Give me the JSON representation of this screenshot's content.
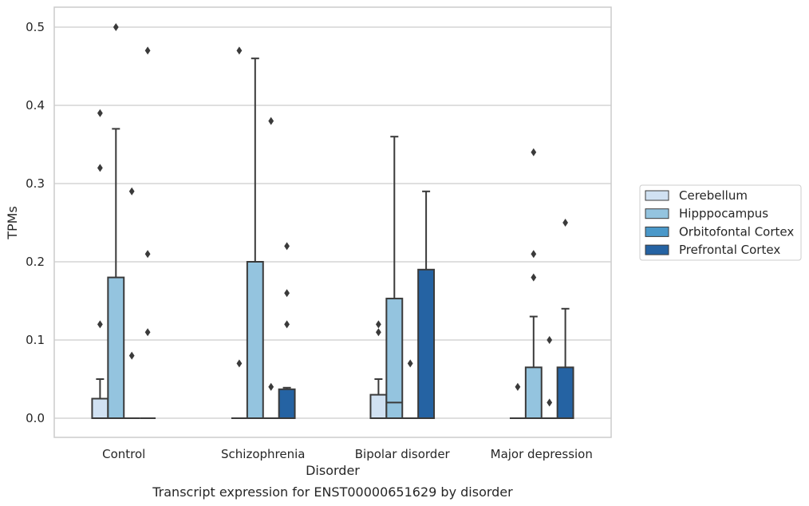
{
  "chart_data": {
    "type": "box",
    "title": "Transcript expression for ENST00000651629 by disorder",
    "xlabel": "Disorder",
    "ylabel": "TPMs",
    "ylim": [
      -0.025,
      0.525
    ],
    "yticks": [
      "0.0",
      "0.1",
      "0.2",
      "0.3",
      "0.4",
      "0.5"
    ],
    "ytick_values": [
      0.0,
      0.1,
      0.2,
      0.3,
      0.4,
      0.5
    ],
    "grid": true,
    "legend_position": "right",
    "categories": [
      "Control",
      "Schizophrenia",
      "Bipolar disorder",
      "Major depression"
    ],
    "series": [
      {
        "name": "Cerebellum",
        "color": "#d0e1f2",
        "boxes": [
          {
            "q1": 0.0,
            "median": 0.0,
            "q3": 0.025,
            "whisker_low": 0.0,
            "whisker_high": 0.05,
            "outliers": [
              0.12,
              0.32,
              0.39
            ]
          },
          {
            "q1": 0.0,
            "median": 0.0,
            "q3": 0.0,
            "whisker_low": 0.0,
            "whisker_high": 0.0,
            "outliers": [
              0.07,
              0.47
            ]
          },
          {
            "q1": 0.0,
            "median": 0.0,
            "q3": 0.03,
            "whisker_low": 0.0,
            "whisker_high": 0.05,
            "outliers": [
              0.11,
              0.12
            ]
          },
          {
            "q1": 0.0,
            "median": 0.0,
            "q3": 0.0,
            "whisker_low": 0.0,
            "whisker_high": 0.0,
            "outliers": [
              0.04
            ]
          }
        ]
      },
      {
        "name": "Hipppocampus",
        "color": "#94c4df",
        "boxes": [
          {
            "q1": 0.0,
            "median": 0.0,
            "q3": 0.18,
            "whisker_low": 0.0,
            "whisker_high": 0.37,
            "outliers": [
              0.5
            ]
          },
          {
            "q1": 0.0,
            "median": 0.0,
            "q3": 0.2,
            "whisker_low": 0.0,
            "whisker_high": 0.46,
            "outliers": []
          },
          {
            "q1": 0.0,
            "median": 0.02,
            "q3": 0.153,
            "whisker_low": 0.0,
            "whisker_high": 0.36,
            "outliers": []
          },
          {
            "q1": 0.0,
            "median": 0.0,
            "q3": 0.065,
            "whisker_low": 0.0,
            "whisker_high": 0.13,
            "outliers": [
              0.18,
              0.21,
              0.34
            ]
          }
        ]
      },
      {
        "name": "Orbitofontal Cortex",
        "color": "#4a98c9",
        "boxes": [
          {
            "q1": 0.0,
            "median": 0.0,
            "q3": 0.0,
            "whisker_low": 0.0,
            "whisker_high": 0.0,
            "outliers": [
              0.08,
              0.29
            ]
          },
          {
            "q1": 0.0,
            "median": 0.0,
            "q3": 0.0,
            "whisker_low": 0.0,
            "whisker_high": 0.0,
            "outliers": [
              0.04,
              0.38
            ]
          },
          {
            "q1": 0.0,
            "median": 0.0,
            "q3": 0.0,
            "whisker_low": 0.0,
            "whisker_high": 0.0,
            "outliers": [
              0.07
            ]
          },
          {
            "q1": 0.0,
            "median": 0.0,
            "q3": 0.0,
            "whisker_low": 0.0,
            "whisker_high": 0.0,
            "outliers": [
              0.02,
              0.1
            ]
          }
        ]
      },
      {
        "name": "Prefrontal Cortex",
        "color": "#2563a3",
        "boxes": [
          {
            "q1": 0.0,
            "median": 0.0,
            "q3": 0.0,
            "whisker_low": 0.0,
            "whisker_high": 0.0,
            "outliers": [
              0.11,
              0.21,
              0.47
            ]
          },
          {
            "q1": 0.0,
            "median": 0.0,
            "q3": 0.037,
            "whisker_low": 0.0,
            "whisker_high": 0.039,
            "outliers": [
              0.12,
              0.16,
              0.22
            ]
          },
          {
            "q1": 0.0,
            "median": 0.0,
            "q3": 0.19,
            "whisker_low": 0.0,
            "whisker_high": 0.29,
            "outliers": []
          },
          {
            "q1": 0.0,
            "median": 0.0,
            "q3": 0.065,
            "whisker_low": 0.0,
            "whisker_high": 0.14,
            "outliers": [
              0.25
            ]
          }
        ]
      }
    ]
  }
}
